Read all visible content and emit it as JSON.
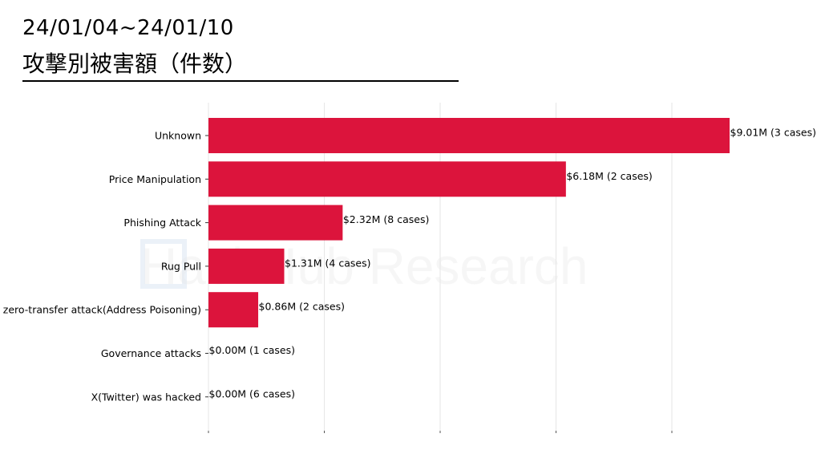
{
  "header": {
    "date_range": "24/01/04~24/01/10",
    "subtitle": "攻撃別被害額（件数）"
  },
  "watermark": {
    "text": "HashHub Research"
  },
  "colors": {
    "bar": "#dc143c",
    "grid": "#e6e6e6",
    "text": "#000000"
  },
  "chart_data": {
    "type": "bar",
    "orientation": "horizontal",
    "title": "攻撃別被害額（件数）",
    "xlabel": "",
    "ylabel": "",
    "xlim": [
      0,
      9.01
    ],
    "grid": true,
    "categories": [
      "Unknown",
      "Price Manipulation",
      "Phishing Attack",
      "Rug Pull",
      "zero-transfer attack(Address Poisoning)",
      "Governance attacks",
      "X(Twitter) was hacked"
    ],
    "values": [
      9.01,
      6.18,
      2.32,
      1.31,
      0.86,
      0.0,
      0.0
    ],
    "cases": [
      3,
      2,
      8,
      4,
      2,
      1,
      6
    ],
    "data_labels": [
      "$9.01M (3 cases)",
      "$6.18M (2 cases)",
      "$2.32M (8 cases)",
      "$1.31M (4 cases)",
      "$0.86M (2 cases)",
      "$0.00M (1 cases)",
      "$0.00M (6 cases)"
    ]
  }
}
